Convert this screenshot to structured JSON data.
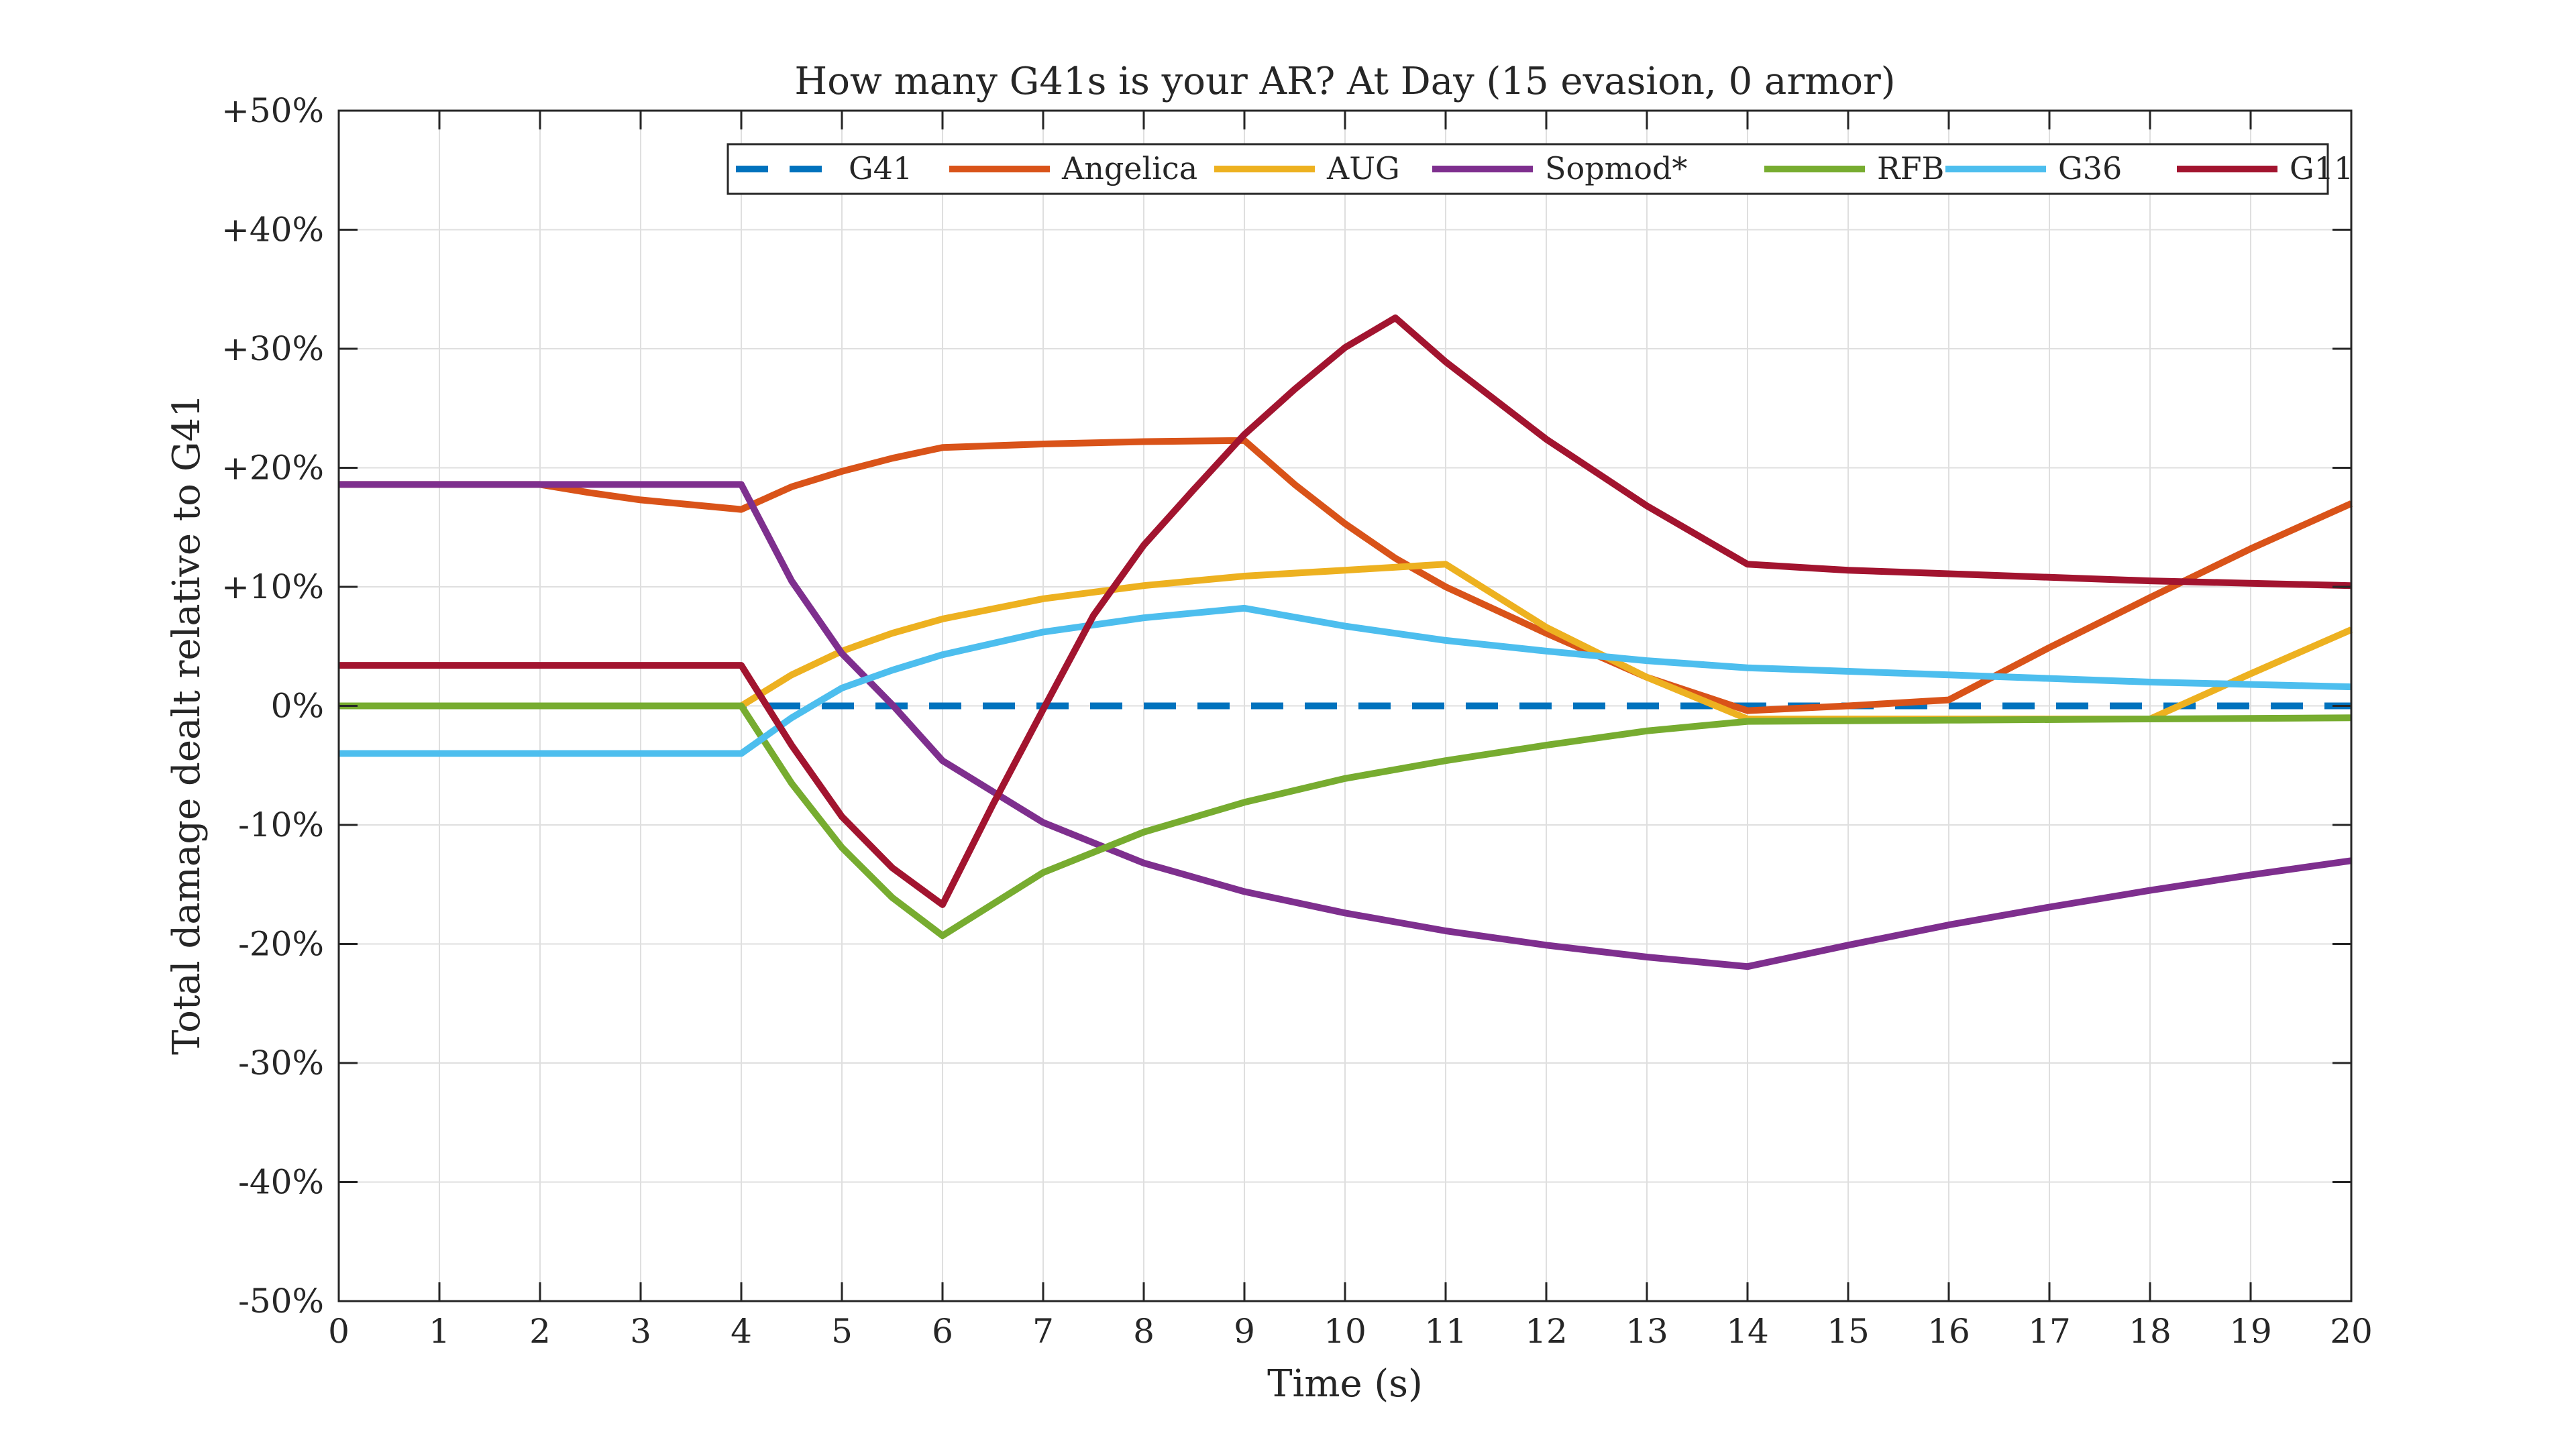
{
  "chart_data": {
    "type": "line",
    "title": "How many G41s is your AR? At Day (15 evasion, 0 armor)",
    "xlabel": "Time (s)",
    "ylabel": "Total damage dealt relative to G41",
    "xlim": [
      0,
      20
    ],
    "ylim": [
      -50,
      50
    ],
    "x_ticks": [
      0,
      1,
      2,
      3,
      4,
      5,
      6,
      7,
      8,
      9,
      10,
      11,
      12,
      13,
      14,
      15,
      16,
      17,
      18,
      19,
      20
    ],
    "x_tick_labels": [
      "0",
      "1",
      "2",
      "3",
      "4",
      "5",
      "6",
      "7",
      "8",
      "9",
      "10",
      "11",
      "12",
      "13",
      "14",
      "15",
      "16",
      "17",
      "18",
      "19",
      "20"
    ],
    "y_ticks": [
      -50,
      -40,
      -30,
      -20,
      -10,
      0,
      10,
      20,
      30,
      40,
      50
    ],
    "y_tick_labels": [
      "-50%",
      "-40%",
      "-30%",
      "-20%",
      "-10%",
      "0%",
      "+10%",
      "+20%",
      "+30%",
      "+40%",
      "+50%"
    ],
    "grid": true,
    "legend_position": "top-right",
    "legend_orientation": "horizontal",
    "series": [
      {
        "name": "G41",
        "color": "#0072BD",
        "dashed": true,
        "points": [
          [
            0,
            0
          ],
          [
            20,
            0
          ]
        ]
      },
      {
        "name": "Angelica",
        "color": "#D95319",
        "dashed": false,
        "points": [
          [
            0,
            18.6
          ],
          [
            2,
            18.6
          ],
          [
            2.5,
            17.9
          ],
          [
            3,
            17.3
          ],
          [
            3.5,
            16.9
          ],
          [
            4,
            16.5
          ],
          [
            4.5,
            18.4
          ],
          [
            5,
            19.7
          ],
          [
            5.5,
            20.8
          ],
          [
            6,
            21.7
          ],
          [
            7,
            22.0
          ],
          [
            8,
            22.2
          ],
          [
            9,
            22.3
          ],
          [
            9.5,
            18.6
          ],
          [
            10,
            15.3
          ],
          [
            10.5,
            12.4
          ],
          [
            11,
            10.0
          ],
          [
            12,
            6.1
          ],
          [
            13,
            2.4
          ],
          [
            14,
            -0.4
          ],
          [
            15,
            0.0
          ],
          [
            16,
            0.5
          ],
          [
            17,
            4.9
          ],
          [
            18,
            9.1
          ],
          [
            19,
            13.2
          ],
          [
            20,
            17.0
          ]
        ]
      },
      {
        "name": "AUG",
        "color": "#EDB120",
        "dashed": false,
        "points": [
          [
            0,
            0
          ],
          [
            4,
            0
          ],
          [
            4.5,
            2.6
          ],
          [
            5,
            4.6
          ],
          [
            5.5,
            6.1
          ],
          [
            6,
            7.3
          ],
          [
            7,
            9.0
          ],
          [
            8,
            10.1
          ],
          [
            9,
            10.9
          ],
          [
            10,
            11.4
          ],
          [
            11,
            11.9
          ],
          [
            12,
            6.6
          ],
          [
            13,
            2.4
          ],
          [
            14,
            -1.1
          ],
          [
            15,
            -1.1
          ],
          [
            16,
            -1.1
          ],
          [
            17,
            -1.1
          ],
          [
            18,
            -1.1
          ],
          [
            19,
            2.7
          ],
          [
            20,
            6.4
          ]
        ]
      },
      {
        "name": "Sopmod*",
        "color": "#7E2F8E",
        "dashed": false,
        "points": [
          [
            0,
            18.6
          ],
          [
            4,
            18.6
          ],
          [
            4.5,
            10.5
          ],
          [
            5,
            4.4
          ],
          [
            5.5,
            0.1
          ],
          [
            6,
            -4.6
          ],
          [
            7,
            -9.8
          ],
          [
            8,
            -13.2
          ],
          [
            9,
            -15.6
          ],
          [
            10,
            -17.4
          ],
          [
            11,
            -18.9
          ],
          [
            12,
            -20.1
          ],
          [
            13,
            -21.1
          ],
          [
            14,
            -21.9
          ],
          [
            15,
            -20.1
          ],
          [
            16,
            -18.4
          ],
          [
            17,
            -16.9
          ],
          [
            18,
            -15.5
          ],
          [
            19,
            -14.2
          ],
          [
            20,
            -13.0
          ]
        ]
      },
      {
        "name": "RFB",
        "color": "#77AC30",
        "dashed": false,
        "points": [
          [
            0,
            0
          ],
          [
            4,
            0
          ],
          [
            4.5,
            -6.5
          ],
          [
            5,
            -11.9
          ],
          [
            5.5,
            -16.1
          ],
          [
            6,
            -19.3
          ],
          [
            7,
            -14.0
          ],
          [
            8,
            -10.6
          ],
          [
            9,
            -8.1
          ],
          [
            10,
            -6.1
          ],
          [
            11,
            -4.6
          ],
          [
            12,
            -3.3
          ],
          [
            13,
            -2.1
          ],
          [
            14,
            -1.3
          ],
          [
            16,
            -1.2
          ],
          [
            18,
            -1.1
          ],
          [
            20,
            -1.0
          ]
        ]
      },
      {
        "name": "G36",
        "color": "#4DBEEE",
        "dashed": false,
        "points": [
          [
            0,
            -4.0
          ],
          [
            4,
            -4.0
          ],
          [
            4.5,
            -1.0
          ],
          [
            5,
            1.5
          ],
          [
            5.5,
            3.0
          ],
          [
            6,
            4.3
          ],
          [
            7,
            6.2
          ],
          [
            8,
            7.4
          ],
          [
            9,
            8.2
          ],
          [
            10,
            6.7
          ],
          [
            11,
            5.5
          ],
          [
            12,
            4.6
          ],
          [
            13,
            3.8
          ],
          [
            14,
            3.2
          ],
          [
            16,
            2.6
          ],
          [
            18,
            2.0
          ],
          [
            20,
            1.6
          ]
        ]
      },
      {
        "name": "G11",
        "color": "#A2142F",
        "dashed": false,
        "points": [
          [
            0,
            3.4
          ],
          [
            4,
            3.4
          ],
          [
            4.5,
            -3.3
          ],
          [
            5,
            -9.3
          ],
          [
            5.5,
            -13.6
          ],
          [
            6,
            -16.7
          ],
          [
            6.5,
            -8.3
          ],
          [
            7,
            -0.3
          ],
          [
            7.5,
            7.6
          ],
          [
            8,
            13.5
          ],
          [
            8.5,
            18.2
          ],
          [
            9,
            22.8
          ],
          [
            9.5,
            26.6
          ],
          [
            10,
            30.1
          ],
          [
            10.5,
            32.6
          ],
          [
            11,
            28.9
          ],
          [
            12,
            22.4
          ],
          [
            13,
            16.8
          ],
          [
            14,
            11.9
          ],
          [
            15,
            11.4
          ],
          [
            16,
            11.1
          ],
          [
            17,
            10.8
          ],
          [
            18,
            10.5
          ],
          [
            19,
            10.3
          ],
          [
            20,
            10.1
          ]
        ]
      }
    ]
  }
}
